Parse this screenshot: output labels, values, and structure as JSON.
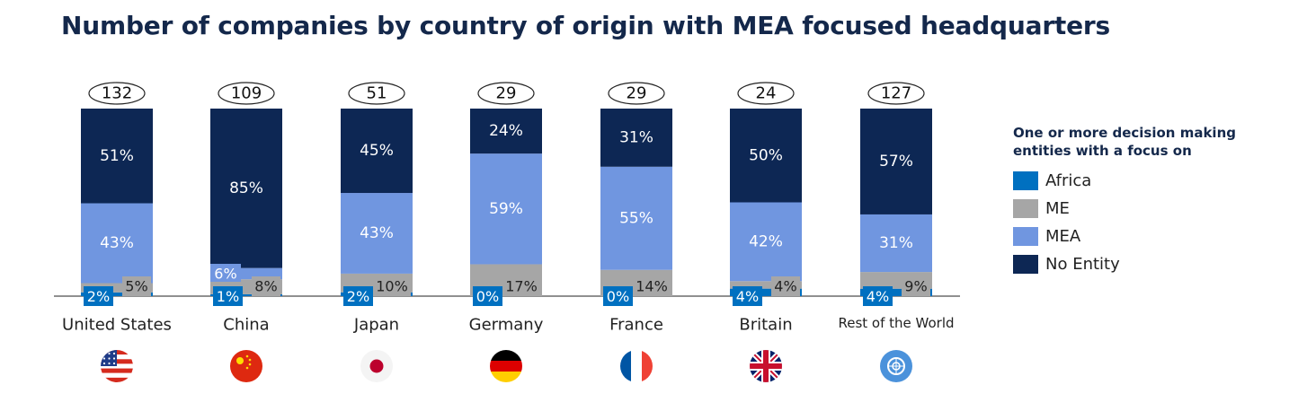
{
  "title": "Number of companies by country of origin with MEA focused headquarters",
  "legend": {
    "title_line1": "One or more decision making",
    "title_line2": "entities with a focus on",
    "items": [
      {
        "label": "Africa",
        "color": "#0070c0"
      },
      {
        "label": "ME",
        "color": "#a6a6a6"
      },
      {
        "label": "MEA",
        "color": "#7096e0"
      },
      {
        "label": "No Entity",
        "color": "#0d2754"
      }
    ]
  },
  "chart_data": {
    "type": "bar",
    "stacked": true,
    "normalized": true,
    "categories": [
      "United States",
      "China",
      "Japan",
      "Germany",
      "France",
      "Britain",
      "Rest of the World"
    ],
    "totals": [
      132,
      109,
      51,
      29,
      29,
      24,
      127
    ],
    "series": [
      {
        "name": "Africa",
        "color": "#0070c0",
        "values": [
          2,
          1,
          2,
          0,
          0,
          4,
          4
        ],
        "labels": [
          "2%",
          "1%",
          "2%",
          "0%",
          "0%",
          "4%",
          "4%"
        ]
      },
      {
        "name": "ME",
        "color": "#a6a6a6",
        "values": [
          5,
          8,
          10,
          17,
          14,
          4,
          9
        ],
        "labels": [
          "5%",
          "8%",
          "10%",
          "17%",
          "14%",
          "4%",
          "9%"
        ]
      },
      {
        "name": "MEA",
        "color": "#7096e0",
        "values": [
          43,
          6,
          43,
          59,
          55,
          42,
          31
        ],
        "labels": [
          "43%",
          "6%",
          "43%",
          "59%",
          "55%",
          "42%",
          "31%"
        ]
      },
      {
        "name": "No Entity",
        "color": "#0d2754",
        "values": [
          51,
          85,
          45,
          24,
          31,
          50,
          57
        ],
        "labels": [
          "51%",
          "85%",
          "45%",
          "24%",
          "31%",
          "50%",
          "57%"
        ]
      }
    ],
    "flags": [
      "us-flag-icon",
      "china-flag-icon",
      "japan-flag-icon",
      "germany-flag-icon",
      "france-flag-icon",
      "britain-flag-icon",
      "un-emblem-icon"
    ]
  }
}
